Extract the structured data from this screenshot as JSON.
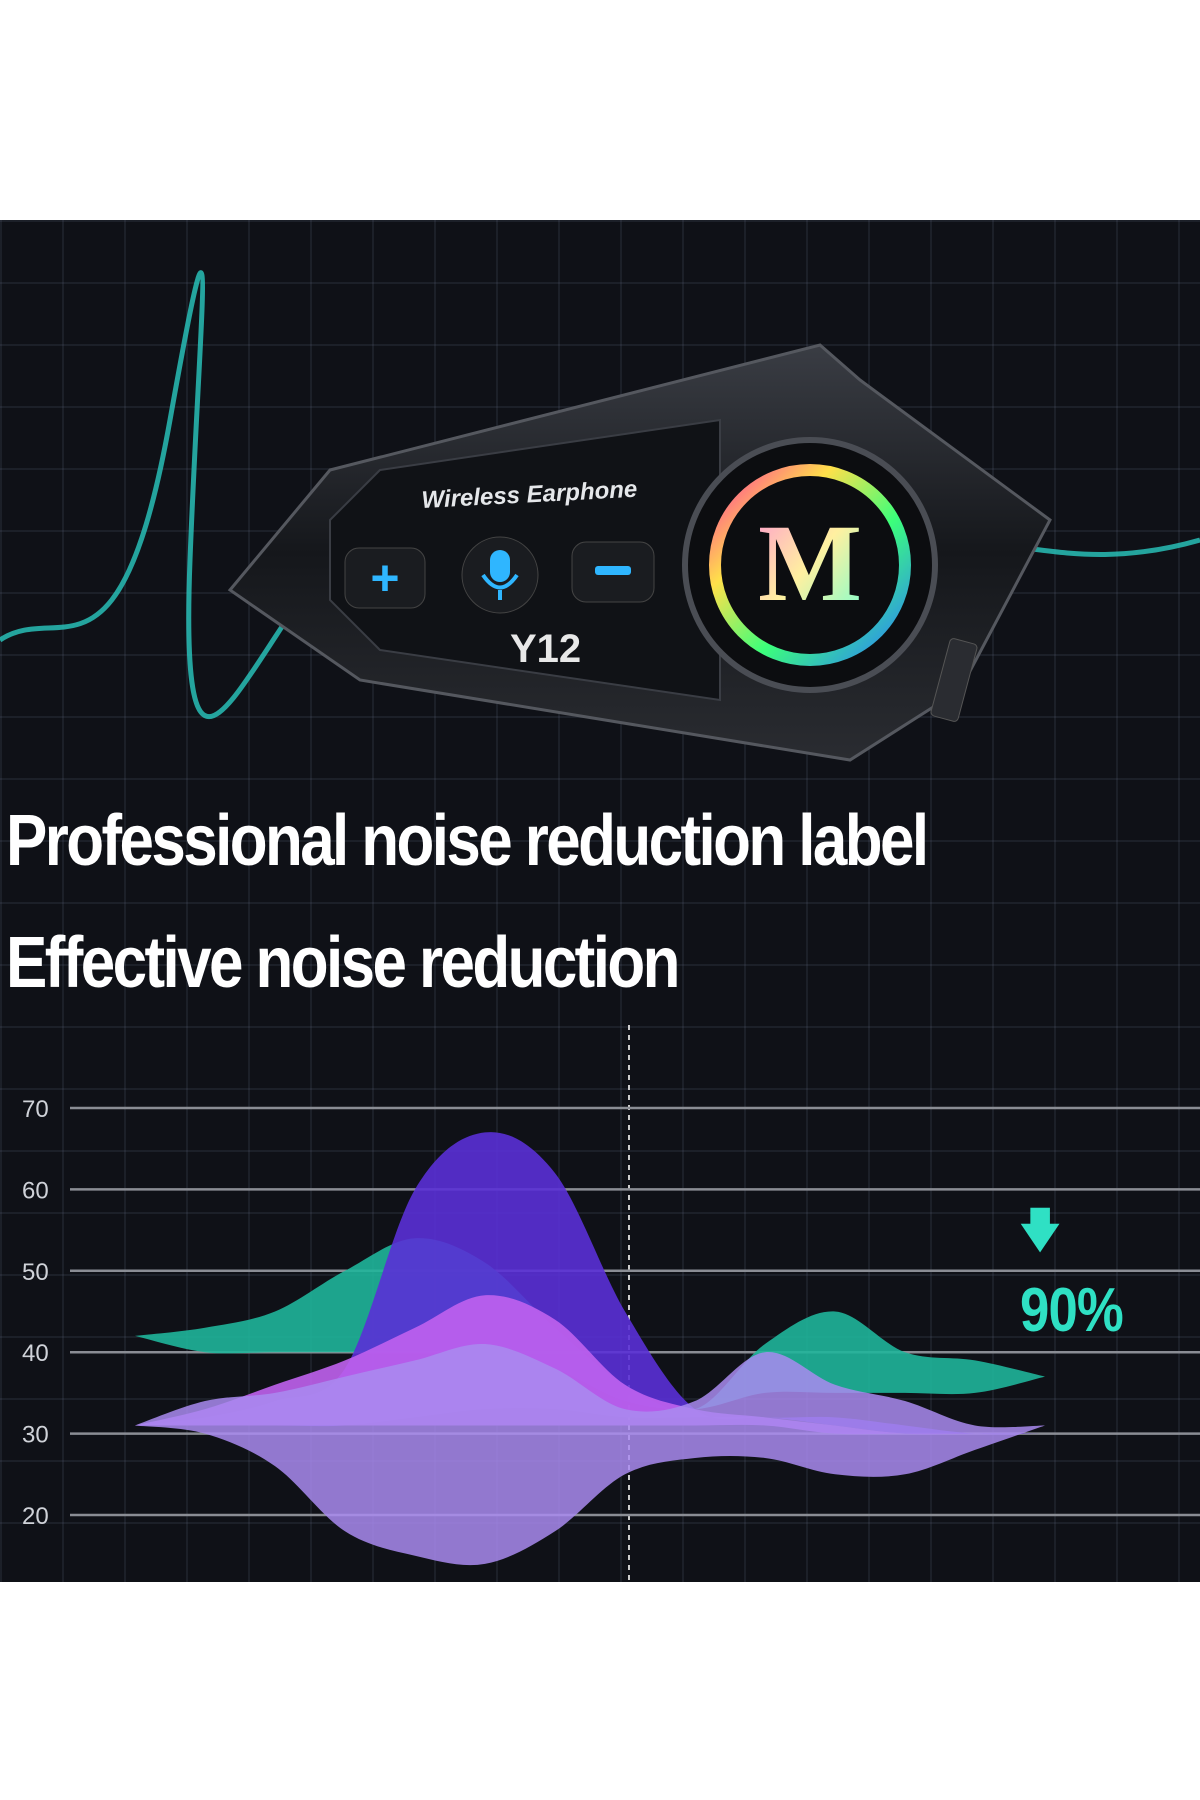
{
  "product": {
    "label": "Wireless Earphone",
    "model": "Y12",
    "logo_letter": "M",
    "buttons": [
      {
        "icon": "plus-icon"
      },
      {
        "icon": "microphone-icon"
      },
      {
        "icon": "minus-icon"
      }
    ],
    "accent": "#2fb6ff"
  },
  "headlines": {
    "line1": "Professional noise reduction label",
    "line2": "Effective noise reduction"
  },
  "chart_data": {
    "type": "area",
    "title": "",
    "xlabel": "",
    "ylabel": "",
    "yticks": [
      70,
      60,
      50,
      40,
      30,
      20
    ],
    "ylim": [
      20,
      70
    ],
    "grid": true,
    "annotation": {
      "icon": "arrow-down-icon",
      "text": "90%",
      "color": "#2fe0c4"
    },
    "series": [
      {
        "color": "#1fb59a",
        "upper": [
          42,
          43,
          45,
          50,
          54,
          51,
          43,
          36,
          33,
          41,
          45,
          40,
          39,
          37
        ],
        "lower": [
          42,
          40,
          40,
          40,
          40,
          40,
          38,
          34,
          33,
          35,
          35,
          35,
          35,
          37
        ]
      },
      {
        "color": "#5a30d6",
        "upper": [
          31,
          32,
          34,
          38,
          60,
          67,
          62,
          45,
          33,
          32,
          32,
          31,
          30,
          30
        ],
        "lower": [
          31,
          31,
          31,
          31,
          32,
          33,
          33,
          32,
          32,
          32,
          31,
          30,
          30,
          30
        ]
      },
      {
        "color": "#c062ee",
        "upper": [
          31,
          33,
          36,
          39,
          43,
          47,
          44,
          36,
          33,
          32,
          31,
          30,
          30,
          30
        ],
        "lower": [
          31,
          31,
          31,
          31,
          31,
          31,
          31,
          31,
          31,
          31,
          30,
          30,
          30,
          30
        ]
      },
      {
        "color": "#a98bf0",
        "upper": [
          31,
          34,
          35,
          37,
          39,
          41,
          38,
          33,
          34,
          40,
          36,
          34,
          31,
          31
        ],
        "lower": [
          31,
          30,
          26,
          18,
          15,
          14,
          18,
          25,
          27,
          27,
          25,
          25,
          28,
          31
        ]
      }
    ]
  }
}
